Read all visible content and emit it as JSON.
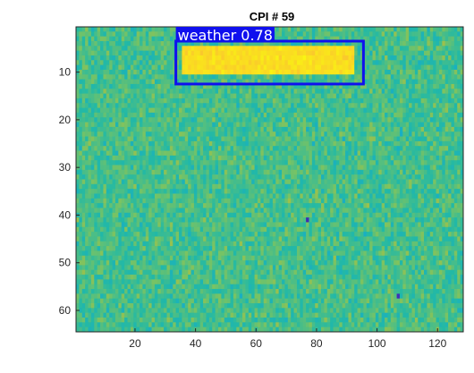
{
  "chart_data": {
    "type": "heatmap",
    "title": "CPI # 59",
    "xlim": [
      0.5,
      128.5
    ],
    "ylim": [
      0.5,
      64.5
    ],
    "y_reversed": true,
    "x_ticks": [
      20,
      40,
      60,
      80,
      100,
      120
    ],
    "y_ticks": [
      10,
      20,
      30,
      40,
      50,
      60
    ],
    "colormap": "parula",
    "background_level": 0.55,
    "noise_level": 0.14,
    "features": [
      {
        "kind": "weather_band",
        "x_range": [
          36,
          92
        ],
        "y_range": [
          5,
          10
        ],
        "level": 0.93
      },
      {
        "kind": "low_pixel",
        "x": 77,
        "y": 41,
        "level": 0.02
      },
      {
        "kind": "low_pixel",
        "x": 107,
        "y": 57,
        "level": 0.03
      }
    ],
    "annotations": [
      {
        "label": "weather 0.78",
        "x_range": [
          33.5,
          95.5
        ],
        "y_range": [
          3.5,
          12.5
        ],
        "box_color": "#1010ee",
        "label_bg": "#1010ee",
        "label_color": "#ffffff"
      }
    ]
  },
  "colors": {
    "axis": "#262626",
    "tick_text": "#262626",
    "title": "#000000"
  }
}
